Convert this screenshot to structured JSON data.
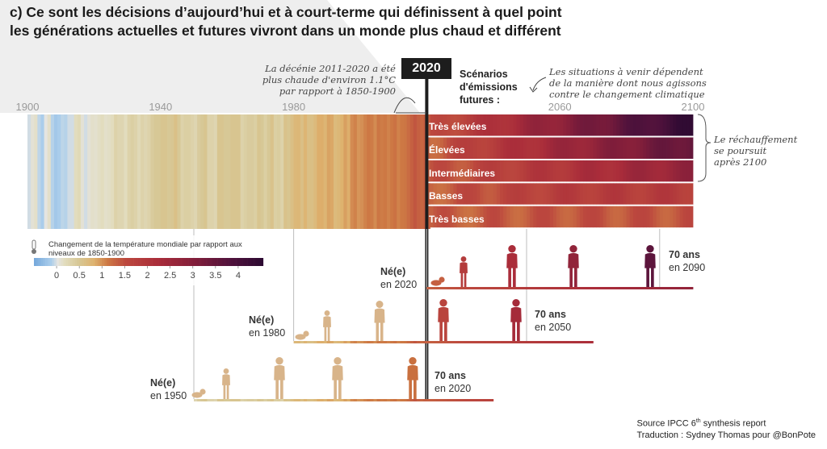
{
  "title_line1": "c) Ce sont les décisions d’aujourd’hui et à court-terme qui définissent à quel point",
  "title_line2": "les générations actuelles et futures vivront dans un monde plus chaud et différent",
  "note_decade": [
    "La décénie 2011-2020 a été",
    "plus chaude d'environ 1.1°C",
    "par rapport à 1850-1900"
  ],
  "note_future": [
    "Les situations à venir dépendent",
    "de la manière dont nous agissons",
    "contre le changement climatique"
  ],
  "note_after": [
    "Le réchauffement",
    "se poursuit",
    "après 2100"
  ],
  "marker_2020": "2020",
  "scenarios_title": [
    "Scénarios",
    "d'émissions",
    "futures :"
  ],
  "source_line1": "Source IPCC 6",
  "source_sup": "th",
  "source_line1_end": " synthesis report",
  "source_line2": "Traduction : Sydney Thomas pour @BonPote",
  "colors": {
    "cool": "#a8cbe8",
    "neutral": "#e6e3dc",
    "warm_low": "#d9c99a",
    "warm_mid": "#c97a4a",
    "hot": "#9b2a3b",
    "very_hot": "#3b0f3f",
    "figure_past": "#d8b48a",
    "background_panel": "#efefef"
  },
  "generations": [
    {
      "born_label": "Né(e)",
      "born_year": "en 1950",
      "age_label": "70 ans",
      "age_year": "en 2020"
    },
    {
      "born_label": "Né(e)",
      "born_year": "en 1980",
      "age_label": "70 ans",
      "age_year": "en 2050"
    },
    {
      "born_label": "Né(e)",
      "born_year": "en 2020",
      "age_label": "70 ans",
      "age_year": "en 2090"
    }
  ],
  "chart_data": {
    "type": "heatmap",
    "x_axis": {
      "range": [
        1900,
        2100
      ],
      "ticks": [
        1900,
        1940,
        1980,
        2020,
        2060,
        2100
      ],
      "tick_labels": [
        "1900",
        "1940",
        "1980",
        "",
        "2060",
        "2100"
      ]
    },
    "scenarios": [
      "Très élevées",
      "Élevées",
      "Intermédiaires",
      "Basses",
      "Très basses"
    ],
    "legend": {
      "title": "Changement de la température mondiale par rapport aux niveaux de 1850-1900",
      "ticks": [
        0,
        0.5,
        1,
        1.5,
        2,
        2.5,
        3,
        3.5,
        4
      ],
      "tick_labels": [
        "0",
        "0.5",
        "1",
        "1.5",
        "2",
        "2.5",
        "3",
        "3.5",
        "4"
      ],
      "range": [
        -0.5,
        4.5
      ]
    },
    "historical_warming": {
      "start_year": 1900,
      "values": [
        -0.05,
        0.05,
        0.1,
        -0.1,
        -0.15,
        0.0,
        0.1,
        -0.12,
        -0.2,
        -0.15,
        -0.1,
        -0.12,
        -0.05,
        -0.05,
        0.15,
        0.2,
        0.05,
        -0.05,
        0.05,
        0.1,
        0.08,
        0.12,
        0.15,
        0.1,
        0.12,
        0.15,
        0.3,
        0.25,
        0.25,
        0.15,
        0.3,
        0.35,
        0.3,
        0.2,
        0.3,
        0.25,
        0.3,
        0.4,
        0.45,
        0.45,
        0.5,
        0.5,
        0.45,
        0.48,
        0.58,
        0.45,
        0.3,
        0.35,
        0.35,
        0.3,
        0.25,
        0.4,
        0.45,
        0.5,
        0.3,
        0.3,
        0.25,
        0.5,
        0.5,
        0.45,
        0.45,
        0.5,
        0.5,
        0.5,
        0.3,
        0.35,
        0.4,
        0.4,
        0.35,
        0.5,
        0.45,
        0.35,
        0.45,
        0.55,
        0.35,
        0.38,
        0.3,
        0.55,
        0.5,
        0.6,
        0.7,
        0.72,
        0.6,
        0.75,
        0.6,
        0.6,
        0.68,
        0.82,
        0.82,
        0.75,
        0.88,
        0.85,
        0.68,
        0.72,
        0.8,
        0.9,
        0.82,
        1.0,
        1.05,
        0.95,
        0.98,
        1.05,
        1.1,
        1.08,
        1.0,
        1.12,
        1.08,
        1.1,
        1.05,
        1.1,
        1.15,
        1.05,
        1.1,
        1.12,
        1.2,
        1.3,
        1.38,
        1.3,
        1.25,
        1.32,
        1.3
      ]
    },
    "scenario_warming_2100": [
      4.4,
      3.6,
      2.7,
      1.8,
      1.4
    ]
  }
}
